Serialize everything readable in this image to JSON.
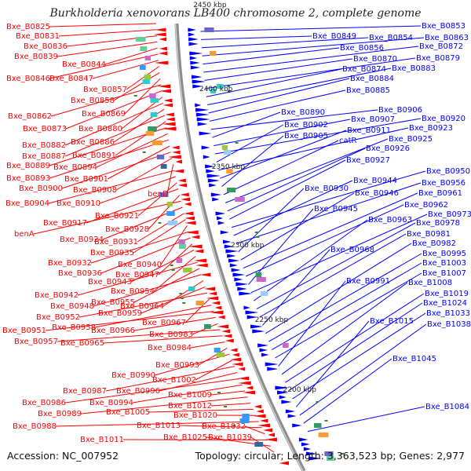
{
  "title": "Burkholderia xenovorans LB400 chromosome 2, complete genome",
  "footer": {
    "accession": "Accession: NC_007952",
    "stats": "Topology: circular; Length: 3,363,523 bp; Genes: 2,977"
  },
  "colors": {
    "left_strand": "#ff0000",
    "right_strand": "#0000ff",
    "backbone": "#8c8c8c",
    "tick_mark": "#2e8b2e"
  },
  "scale_labels": [
    {
      "text": "2450 kbp"
    },
    {
      "text": "2400 kbp"
    },
    {
      "text": "2350 kbp"
    },
    {
      "text": "2300 kbp"
    },
    {
      "text": "2250 kbp"
    },
    {
      "text": "2200 kbp"
    }
  ],
  "left_genes": [
    {
      "text": "Bxe_B0825"
    },
    {
      "text": "Bxe_B0831"
    },
    {
      "text": "Bxe_B0836"
    },
    {
      "text": "Bxe_B0839"
    },
    {
      "text": "Bxe_B0844"
    },
    {
      "text": "Bxe_B0846"
    },
    {
      "text": "Bxe_B0847"
    },
    {
      "text": "Bxe_B0857"
    },
    {
      "text": "Bxe_B0858"
    },
    {
      "text": "Bxe_B0869"
    },
    {
      "text": "Bxe_B0862"
    },
    {
      "text": "Bxe_B0873"
    },
    {
      "text": "Bxe_B0880"
    },
    {
      "text": "Bxe_B0882"
    },
    {
      "text": "Bxe_B0886"
    },
    {
      "text": "Bxe_B0887"
    },
    {
      "text": "Bxe_B0891"
    },
    {
      "text": "Bxe_B0889"
    },
    {
      "text": "Bxe_B0894"
    },
    {
      "text": "Bxe_B0893"
    },
    {
      "text": "Bxe_B0901"
    },
    {
      "text": "Bxe_B0900"
    },
    {
      "text": "Bxe_B0908"
    },
    {
      "text": "benD"
    },
    {
      "text": "Bxe_B0904"
    },
    {
      "text": "Bxe_B0910"
    },
    {
      "text": "Bxe_B0921"
    },
    {
      "text": "Bxe_B0917"
    },
    {
      "text": "Bxe_B0928"
    },
    {
      "text": "benA"
    },
    {
      "text": "Bxe_B0924"
    },
    {
      "text": "Bxe_B0931"
    },
    {
      "text": "Bxe_B0935"
    },
    {
      "text": "Bxe_B0940"
    },
    {
      "text": "Bxe_B0932"
    },
    {
      "text": "Bxe_B0936"
    },
    {
      "text": "Bxe_B0947"
    },
    {
      "text": "Bxe_B0943"
    },
    {
      "text": "Bxe_B0954"
    },
    {
      "text": "Bxe_B0942"
    },
    {
      "text": "Bxe_B0955"
    },
    {
      "text": "Bxe_B0948"
    },
    {
      "text": "Bxe_B0964"
    },
    {
      "text": "Bxe_B0959"
    },
    {
      "text": "Bxe_B0952"
    },
    {
      "text": "Bxe_B0967"
    },
    {
      "text": "Bxe_B0958"
    },
    {
      "text": "Bxe_B0951"
    },
    {
      "text": "Bxe_B0966"
    },
    {
      "text": "Bxe_B0983"
    },
    {
      "text": "Bxe_B0957"
    },
    {
      "text": "Bxe_B0965"
    },
    {
      "text": "Bxe_B0984"
    },
    {
      "text": "Bxe_B0993"
    },
    {
      "text": "Bxe_B0990"
    },
    {
      "text": "Bxe_B1002"
    },
    {
      "text": "Bxe_B0987"
    },
    {
      "text": "Bxe_B0996"
    },
    {
      "text": "Bxe_B0986"
    },
    {
      "text": "Bxe_B0994"
    },
    {
      "text": "Bxe_B1009"
    },
    {
      "text": "Bxe_B0989"
    },
    {
      "text": "Bxe_B1012"
    },
    {
      "text": "Bxe_B1005"
    },
    {
      "text": "Bxe_B1020"
    },
    {
      "text": "Bxe_B0988"
    },
    {
      "text": "Bxe_B1013"
    },
    {
      "text": "Bxe_B1032"
    },
    {
      "text": "Bxe_B1011"
    },
    {
      "text": "Bxe_B1025"
    },
    {
      "text": "Bxe_B1039"
    }
  ],
  "right_genes": [
    {
      "text": "Bxe_B0853"
    },
    {
      "text": "Bxe_B0849"
    },
    {
      "text": "Bxe_B0854"
    },
    {
      "text": "Bxe_B0863"
    },
    {
      "text": "Bxe_B0856"
    },
    {
      "text": "Bxe_B0872"
    },
    {
      "text": "Bxe_B0870"
    },
    {
      "text": "Bxe_B0879"
    },
    {
      "text": "Bxe_B0874"
    },
    {
      "text": "Bxe_B0883"
    },
    {
      "text": "Bxe_B0884"
    },
    {
      "text": "Bxe_B0885"
    },
    {
      "text": "Bxe_B0906"
    },
    {
      "text": "Bxe_B0890"
    },
    {
      "text": "Bxe_B0907"
    },
    {
      "text": "Bxe_B0920"
    },
    {
      "text": "Bxe_B0902"
    },
    {
      "text": "Bxe_B0923"
    },
    {
      "text": "Bxe_B0911"
    },
    {
      "text": "Bxe_B0905"
    },
    {
      "text": "catR"
    },
    {
      "text": "Bxe_B0925"
    },
    {
      "text": "Bxe_B0926"
    },
    {
      "text": "Bxe_B0927"
    },
    {
      "text": "Bxe_B0950"
    },
    {
      "text": "Bxe_B0944"
    },
    {
      "text": "Bxe_B0956"
    },
    {
      "text": "Bxe_B0930"
    },
    {
      "text": "Bxe_B0946"
    },
    {
      "text": "Bxe_B0961"
    },
    {
      "text": "Bxe_B0962"
    },
    {
      "text": "Bxe_B0945"
    },
    {
      "text": "Bxe_B0973"
    },
    {
      "text": "Bxe_B0963"
    },
    {
      "text": "Bxe_B0978"
    },
    {
      "text": "Bxe_B0981"
    },
    {
      "text": "Bxe_B0968"
    },
    {
      "text": "Bxe_B0982"
    },
    {
      "text": "Bxe_B0995"
    },
    {
      "text": "Bxe_B1003"
    },
    {
      "text": "Bxe_B1007"
    },
    {
      "text": "Bxe_B0991"
    },
    {
      "text": "Bxe_B1008"
    },
    {
      "text": "Bxe_B1019"
    },
    {
      "text": "Bxe_B1024"
    },
    {
      "text": "Bxe_B1033"
    },
    {
      "text": "Bxe_B1015"
    },
    {
      "text": "Bxe_B1038"
    },
    {
      "text": "Bxe_B1045"
    },
    {
      "text": "Bxe_B1084"
    }
  ]
}
